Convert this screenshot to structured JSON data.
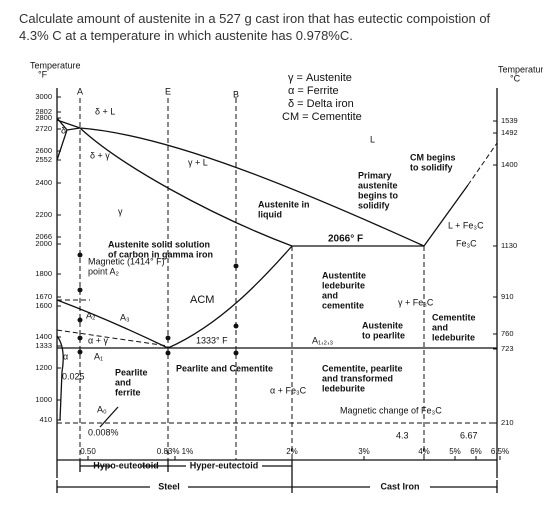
{
  "question": {
    "lines": [
      "Calculate amount of austenite in a 527 g cast iron that has eutectic compoistion of",
      "4.3% C at a temperature in which austenite has 0.978%C."
    ]
  },
  "diagram": {
    "left_axis": {
      "title": "Temperature",
      "unit": "°F",
      "ticks": [
        "3000",
        "2802",
        "2800",
        "2720",
        "2600",
        "2552",
        "2400",
        "2200",
        "2066",
        "2000",
        "1800",
        "1670",
        "1600",
        "1400",
        "1333",
        "1200",
        "1000",
        "410"
      ]
    },
    "right_axis": {
      "title": "Temperature",
      "unit": "°C",
      "ticks": [
        "1539",
        "1492",
        "1400",
        "1130",
        "910",
        "760",
        "723",
        "210"
      ]
    },
    "bottom_ticks": [
      "0.50",
      "0.83% 1%",
      "2%",
      "3%",
      "4%",
      "5%",
      "6%",
      "6.5%"
    ],
    "points": [
      "A",
      "E",
      "B"
    ],
    "legend": [
      "γ = Austenite",
      "α = Ferrite",
      "δ = Delta iron",
      "CM = Cementite"
    ],
    "regions": [
      [
        "δ + L"
      ],
      [
        "δ"
      ],
      [
        "δ + γ"
      ],
      [
        "γ + L"
      ],
      [
        "L"
      ],
      [
        "γ"
      ],
      [
        "Austenite in",
        "liquid"
      ],
      [
        "Primary",
        "austenite",
        "begins to",
        "solidify"
      ],
      [
        "CM begins",
        "to solidify"
      ],
      [
        "L + Fe₃C"
      ],
      [
        "2066° F"
      ],
      [
        "Austenite solid solution",
        "of carbon in gamma iron"
      ],
      [
        "Fe₃C"
      ],
      [
        "Magnetic (1414° F)",
        "point A₂"
      ],
      [
        "Austentite",
        "ledeburite",
        "and",
        "cementite"
      ],
      [
        "γ + Fe₃C"
      ],
      [
        "ACM"
      ],
      [
        "A₂"
      ],
      [
        "A₃"
      ],
      [
        "α + γ"
      ],
      [
        "1333° F"
      ],
      [
        "A₁,₂,₃"
      ],
      [
        "Austenite",
        "to pearlite"
      ],
      [
        "Cementite",
        "and",
        "ledeburite"
      ],
      [
        "α"
      ],
      [
        "A₁"
      ],
      [
        "0.025"
      ],
      [
        "Pearlite",
        "and",
        "ferrite"
      ],
      [
        "Pearlite and Cementite"
      ],
      [
        "α + Fe₃C"
      ],
      [
        "Cementite, pearlite",
        "and transformed",
        "ledeburite"
      ],
      [
        "A₀"
      ],
      [
        "Magnetic change of Fe₃C"
      ],
      [
        "0.008%"
      ],
      [
        "4.3"
      ],
      [
        "6.67"
      ]
    ],
    "ranges": [
      "Hypo-eutectoid",
      "Hyper-eutectoid",
      "Steel",
      "Cast Iron"
    ]
  }
}
